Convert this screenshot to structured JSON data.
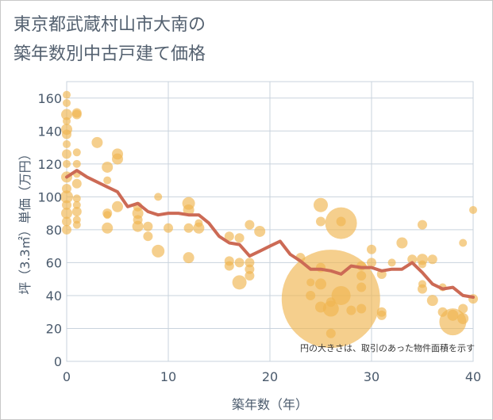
{
  "chart_data": {
    "type": "scatter",
    "title": "東京都武蔵村山市大南の\n築年数別中古戸建て価格",
    "xlabel": "築年数（年）",
    "ylabel": "坪（3.3㎡）単価（万円）",
    "xlim": [
      0,
      40
    ],
    "ylim": [
      0,
      170
    ],
    "xticks": [
      0,
      10,
      20,
      30,
      40
    ],
    "yticks": [
      0,
      20,
      40,
      60,
      80,
      100,
      120,
      140,
      160
    ],
    "note": "円の大きさは、取引のあった物件面積を示す",
    "colors": {
      "bubble": "#f0b550",
      "line": "#cc6a55",
      "grid": "#c9d3dd",
      "text": "#4a5a6c"
    },
    "trend_line": {
      "x": [
        0,
        1,
        2,
        3,
        4,
        5,
        6,
        7,
        8,
        9,
        10,
        11,
        12,
        13,
        14,
        15,
        16,
        17,
        18,
        19,
        20,
        21,
        22,
        23,
        24,
        25,
        26,
        27,
        28,
        29,
        30,
        31,
        32,
        33,
        34,
        35,
        36,
        37,
        38,
        39,
        40
      ],
      "y": [
        112,
        116,
        112,
        109,
        106,
        103,
        94,
        96,
        91,
        89,
        90,
        90,
        89,
        89,
        84,
        76,
        72,
        71,
        64,
        67,
        70,
        73,
        65,
        61,
        56,
        56,
        55,
        53,
        58,
        57,
        57,
        55,
        56,
        56,
        60,
        54,
        47,
        44,
        45,
        40,
        39
      ]
    },
    "points": [
      {
        "x": 0,
        "y": 162,
        "s": 5
      },
      {
        "x": 0,
        "y": 157,
        "s": 5
      },
      {
        "x": 0,
        "y": 150,
        "s": 7
      },
      {
        "x": 0,
        "y": 146,
        "s": 5
      },
      {
        "x": 0,
        "y": 141,
        "s": 7
      },
      {
        "x": 0,
        "y": 138,
        "s": 6
      },
      {
        "x": 0,
        "y": 132,
        "s": 5
      },
      {
        "x": 0,
        "y": 126,
        "s": 6
      },
      {
        "x": 0,
        "y": 120,
        "s": 5
      },
      {
        "x": 0,
        "y": 112,
        "s": 7
      },
      {
        "x": 0,
        "y": 105,
        "s": 6
      },
      {
        "x": 0,
        "y": 100,
        "s": 8
      },
      {
        "x": 0,
        "y": 95,
        "s": 6
      },
      {
        "x": 0,
        "y": 90,
        "s": 7
      },
      {
        "x": 0,
        "y": 85,
        "s": 6
      },
      {
        "x": 0,
        "y": 80,
        "s": 6
      },
      {
        "x": 1,
        "y": 151,
        "s": 6
      },
      {
        "x": 1,
        "y": 150,
        "s": 6
      },
      {
        "x": 1,
        "y": 127,
        "s": 5
      },
      {
        "x": 1,
        "y": 120,
        "s": 5
      },
      {
        "x": 1,
        "y": 114,
        "s": 5
      },
      {
        "x": 1,
        "y": 108,
        "s": 6
      },
      {
        "x": 1,
        "y": 99,
        "s": 5
      },
      {
        "x": 1,
        "y": 95,
        "s": 5
      },
      {
        "x": 1,
        "y": 91,
        "s": 6
      },
      {
        "x": 1,
        "y": 86,
        "s": 5
      },
      {
        "x": 1,
        "y": 83,
        "s": 5
      },
      {
        "x": 3,
        "y": 133,
        "s": 7
      },
      {
        "x": 4,
        "y": 118,
        "s": 7
      },
      {
        "x": 4,
        "y": 110,
        "s": 5
      },
      {
        "x": 4,
        "y": 90,
        "s": 6
      },
      {
        "x": 4,
        "y": 89,
        "s": 5
      },
      {
        "x": 4,
        "y": 81,
        "s": 7
      },
      {
        "x": 5,
        "y": 126,
        "s": 7
      },
      {
        "x": 5,
        "y": 123,
        "s": 7
      },
      {
        "x": 5,
        "y": 94,
        "s": 7
      },
      {
        "x": 7,
        "y": 94,
        "s": 6
      },
      {
        "x": 7,
        "y": 90,
        "s": 7
      },
      {
        "x": 7,
        "y": 86,
        "s": 6
      },
      {
        "x": 7,
        "y": 82,
        "s": 7
      },
      {
        "x": 8,
        "y": 82,
        "s": 6
      },
      {
        "x": 8,
        "y": 76,
        "s": 6
      },
      {
        "x": 9,
        "y": 100,
        "s": 5
      },
      {
        "x": 9,
        "y": 67,
        "s": 8
      },
      {
        "x": 10,
        "y": 81,
        "s": 6
      },
      {
        "x": 12,
        "y": 96,
        "s": 8
      },
      {
        "x": 12,
        "y": 92,
        "s": 7
      },
      {
        "x": 12,
        "y": 81,
        "s": 6
      },
      {
        "x": 12,
        "y": 63,
        "s": 7
      },
      {
        "x": 13,
        "y": 84,
        "s": 5
      },
      {
        "x": 13,
        "y": 81,
        "s": 7
      },
      {
        "x": 16,
        "y": 76,
        "s": 6
      },
      {
        "x": 16,
        "y": 61,
        "s": 6
      },
      {
        "x": 16,
        "y": 58,
        "s": 6
      },
      {
        "x": 17,
        "y": 75,
        "s": 6
      },
      {
        "x": 17,
        "y": 60,
        "s": 6
      },
      {
        "x": 17,
        "y": 48,
        "s": 9
      },
      {
        "x": 18,
        "y": 83,
        "s": 6
      },
      {
        "x": 18,
        "y": 60,
        "s": 6
      },
      {
        "x": 18,
        "y": 56,
        "s": 6
      },
      {
        "x": 18,
        "y": 52,
        "s": 6
      },
      {
        "x": 19,
        "y": 79,
        "s": 7
      },
      {
        "x": 23,
        "y": 63,
        "s": 6
      },
      {
        "x": 24,
        "y": 48,
        "s": 5
      },
      {
        "x": 24,
        "y": 40,
        "s": 6
      },
      {
        "x": 25,
        "y": 95,
        "s": 9
      },
      {
        "x": 25,
        "y": 85,
        "s": 6
      },
      {
        "x": 25,
        "y": 57,
        "s": 6
      },
      {
        "x": 25,
        "y": 47,
        "s": 7
      },
      {
        "x": 25,
        "y": 33,
        "s": 7
      },
      {
        "x": 26,
        "y": 38,
        "s": 62
      },
      {
        "x": 26,
        "y": 36,
        "s": 6
      },
      {
        "x": 26,
        "y": 32,
        "s": 10
      },
      {
        "x": 26,
        "y": 17,
        "s": 6
      },
      {
        "x": 27,
        "y": 85,
        "s": 6
      },
      {
        "x": 27,
        "y": 84,
        "s": 20
      },
      {
        "x": 27,
        "y": 40,
        "s": 12
      },
      {
        "x": 28,
        "y": 31,
        "s": 6
      },
      {
        "x": 29,
        "y": 58,
        "s": 6
      },
      {
        "x": 29,
        "y": 52,
        "s": 6
      },
      {
        "x": 29,
        "y": 45,
        "s": 6
      },
      {
        "x": 29,
        "y": 32,
        "s": 6
      },
      {
        "x": 30,
        "y": 68,
        "s": 6
      },
      {
        "x": 30,
        "y": 60,
        "s": 6
      },
      {
        "x": 31,
        "y": 53,
        "s": 6
      },
      {
        "x": 31,
        "y": 30,
        "s": 6
      },
      {
        "x": 31,
        "y": 28,
        "s": 6
      },
      {
        "x": 32,
        "y": 60,
        "s": 5
      },
      {
        "x": 33,
        "y": 72,
        "s": 7
      },
      {
        "x": 34,
        "y": 62,
        "s": 6
      },
      {
        "x": 35,
        "y": 83,
        "s": 6
      },
      {
        "x": 35,
        "y": 62,
        "s": 7
      },
      {
        "x": 35,
        "y": 59,
        "s": 5
      },
      {
        "x": 35,
        "y": 47,
        "s": 5
      },
      {
        "x": 35,
        "y": 44,
        "s": 6
      },
      {
        "x": 36,
        "y": 62,
        "s": 6
      },
      {
        "x": 36,
        "y": 37,
        "s": 7
      },
      {
        "x": 37,
        "y": 45,
        "s": 5
      },
      {
        "x": 37,
        "y": 30,
        "s": 6
      },
      {
        "x": 38,
        "y": 24,
        "s": 17
      },
      {
        "x": 38,
        "y": 28,
        "s": 7
      },
      {
        "x": 39,
        "y": 72,
        "s": 5
      },
      {
        "x": 39,
        "y": 32,
        "s": 6
      },
      {
        "x": 39,
        "y": 26,
        "s": 7
      },
      {
        "x": 40,
        "y": 92,
        "s": 5
      },
      {
        "x": 40,
        "y": 38,
        "s": 6
      }
    ]
  }
}
